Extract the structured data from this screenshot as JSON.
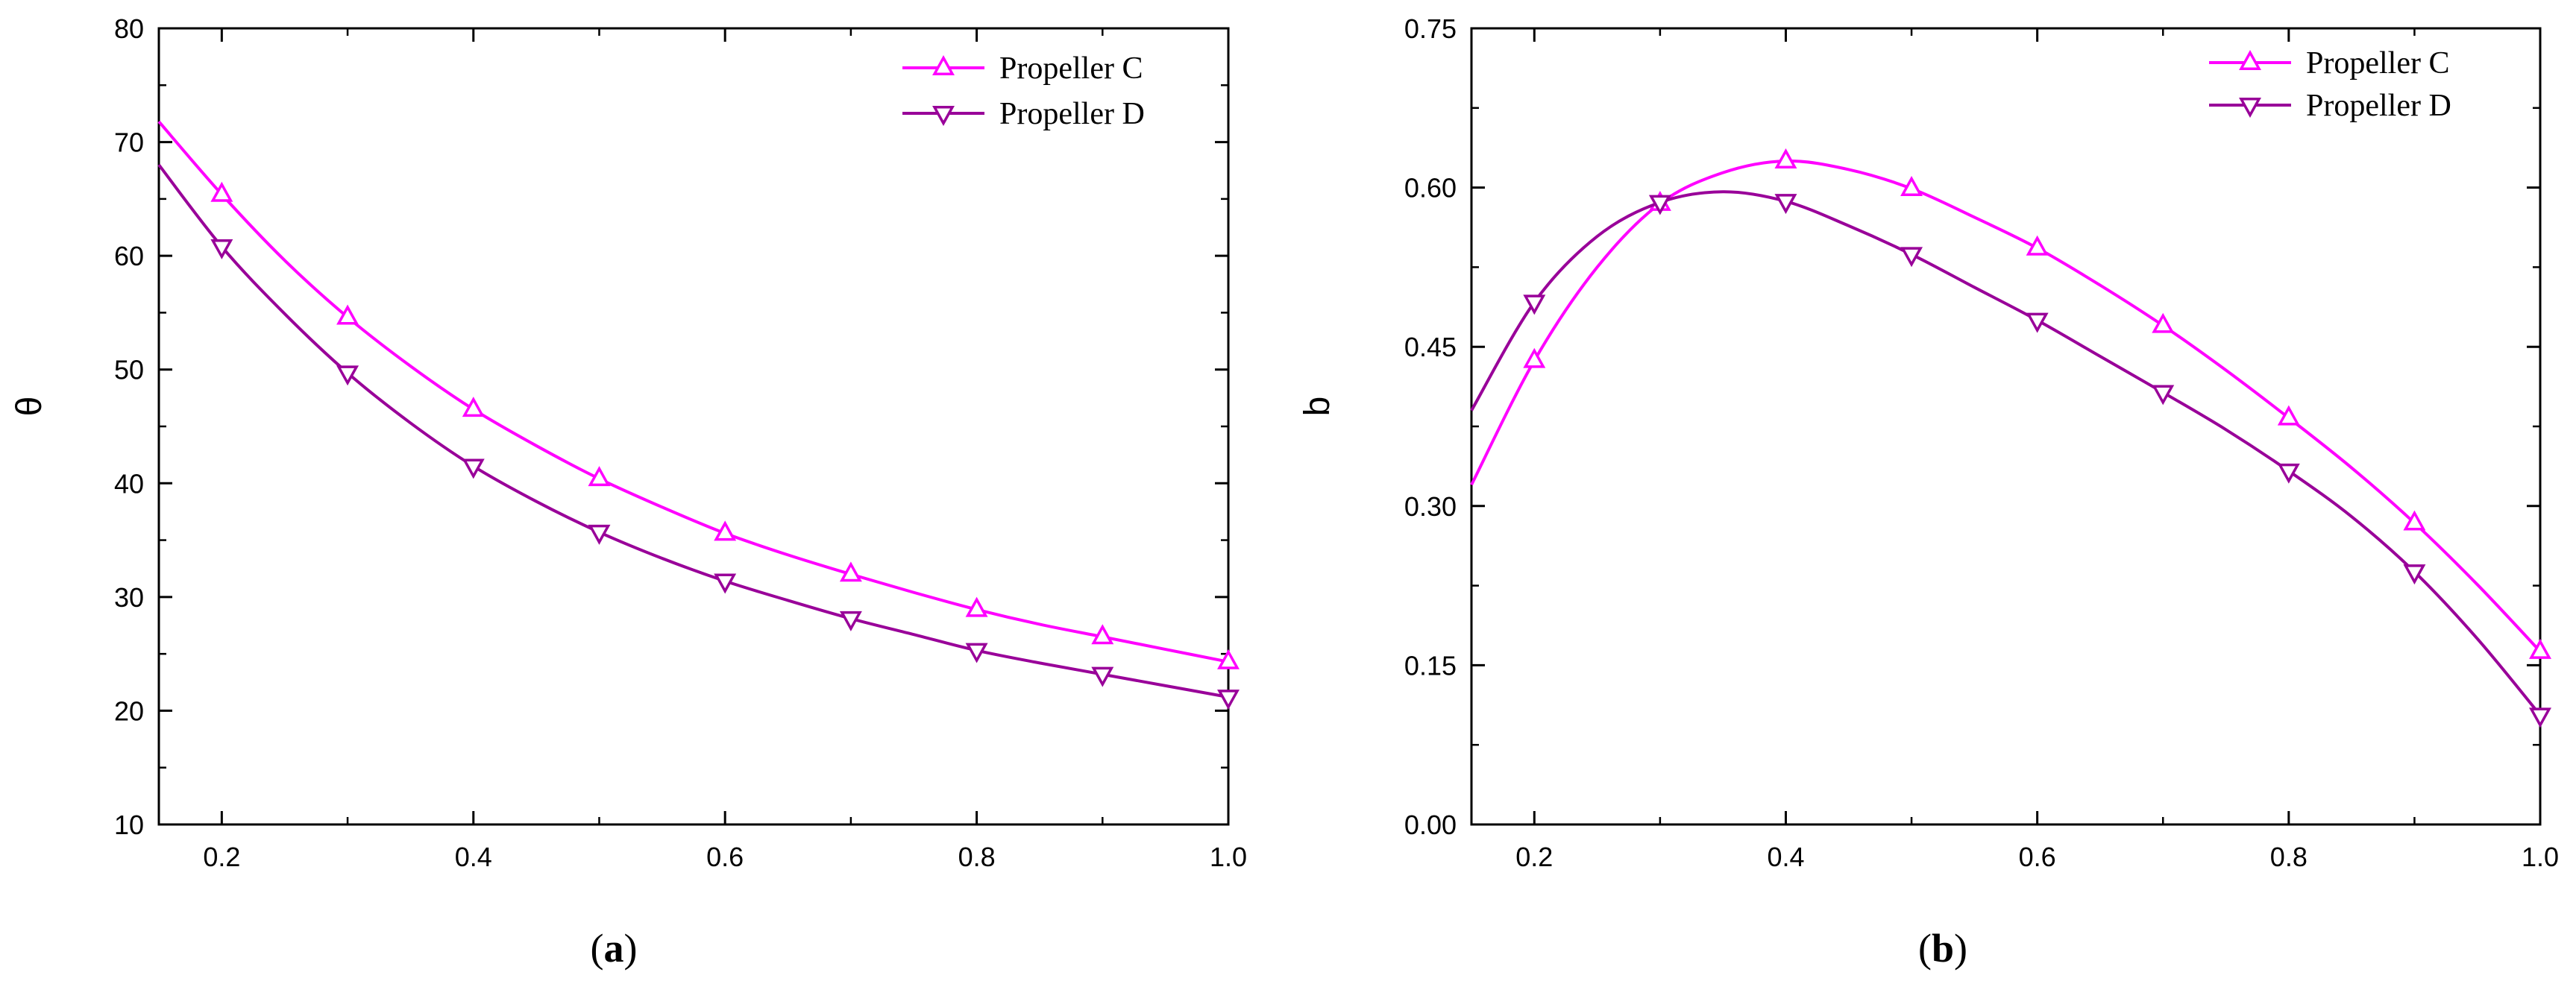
{
  "chart_data": [
    {
      "type": "line",
      "caption": {
        "open": "(",
        "letter": "a",
        "close": ")"
      },
      "xlabel": "",
      "ylabel": "θ",
      "xlim": [
        0.15,
        1.0
      ],
      "ylim": [
        10,
        80
      ],
      "xticks": [
        0.2,
        0.4,
        0.6,
        0.8,
        1.0
      ],
      "xtick_labels": [
        "0.2",
        "0.4",
        "0.6",
        "0.8",
        "1.0"
      ],
      "yticks": [
        10,
        20,
        30,
        40,
        50,
        60,
        70,
        80
      ],
      "ytick_labels": [
        "10",
        "20",
        "30",
        "40",
        "50",
        "60",
        "70",
        "80"
      ],
      "legend": "top-right",
      "series": [
        {
          "name": "Propeller C",
          "color": "#ff00ff",
          "marker": "triangle-up",
          "line_x": [
            0.15,
            0.2,
            0.25,
            0.3,
            0.35,
            0.4,
            0.45,
            0.5,
            0.55,
            0.6,
            0.65,
            0.7,
            0.75,
            0.8,
            0.85,
            0.9,
            0.95,
            1.0
          ],
          "line_y": [
            71.8,
            65.4,
            59.6,
            54.6,
            50.3,
            46.5,
            43.3,
            40.4,
            37.9,
            35.6,
            33.7,
            32.0,
            30.4,
            28.9,
            27.6,
            26.5,
            25.4,
            24.3
          ],
          "marker_x": [
            0.2,
            0.3,
            0.4,
            0.5,
            0.6,
            0.7,
            0.8,
            0.9,
            1.0
          ],
          "marker_y": [
            65.4,
            54.6,
            46.5,
            40.4,
            35.6,
            32.0,
            28.9,
            26.5,
            24.3
          ]
        },
        {
          "name": "Propeller D",
          "color": "#990099",
          "marker": "triangle-down",
          "line_x": [
            0.15,
            0.2,
            0.25,
            0.3,
            0.35,
            0.4,
            0.45,
            0.5,
            0.55,
            0.6,
            0.65,
            0.7,
            0.75,
            0.8,
            0.85,
            0.9,
            0.95,
            1.0
          ],
          "line_y": [
            68.0,
            60.8,
            54.9,
            49.7,
            45.3,
            41.5,
            38.4,
            35.7,
            33.4,
            31.4,
            29.7,
            28.1,
            26.7,
            25.3,
            24.2,
            23.2,
            22.2,
            21.2
          ],
          "marker_x": [
            0.2,
            0.3,
            0.4,
            0.5,
            0.6,
            0.7,
            0.8,
            0.9,
            1.0
          ],
          "marker_y": [
            60.8,
            49.7,
            41.5,
            35.7,
            31.4,
            28.1,
            25.3,
            23.2,
            21.2
          ]
        }
      ]
    },
    {
      "type": "line",
      "caption": {
        "open": "(",
        "letter": "b",
        "close": ")"
      },
      "xlabel": "",
      "ylabel": "b",
      "xlim": [
        0.15,
        1.0
      ],
      "ylim": [
        0.0,
        0.75
      ],
      "xticks": [
        0.2,
        0.4,
        0.6,
        0.8,
        1.0
      ],
      "xtick_labels": [
        "0.2",
        "0.4",
        "0.6",
        "0.8",
        "1.0"
      ],
      "yticks": [
        0.0,
        0.15,
        0.3,
        0.45,
        0.6,
        0.75
      ],
      "ytick_labels": [
        "0.00",
        "0.15",
        "0.30",
        "0.45",
        "0.60",
        "0.75"
      ],
      "legend": "top-right",
      "series": [
        {
          "name": "Propeller C",
          "color": "#ff00ff",
          "marker": "triangle-up",
          "line_x": [
            0.15,
            0.2,
            0.25,
            0.3,
            0.35,
            0.4,
            0.45,
            0.5,
            0.55,
            0.6,
            0.65,
            0.7,
            0.75,
            0.8,
            0.85,
            0.9,
            0.95,
            1.0
          ],
          "line_y": [
            0.32,
            0.437,
            0.525,
            0.585,
            0.614,
            0.625,
            0.617,
            0.599,
            0.572,
            0.543,
            0.508,
            0.47,
            0.428,
            0.383,
            0.336,
            0.284,
            0.226,
            0.163
          ],
          "marker_x": [
            0.2,
            0.3,
            0.4,
            0.5,
            0.6,
            0.7,
            0.8,
            0.9,
            1.0
          ],
          "marker_y": [
            0.437,
            0.585,
            0.625,
            0.599,
            0.543,
            0.47,
            0.383,
            0.284,
            0.163
          ]
        },
        {
          "name": "Propeller D",
          "color": "#990099",
          "marker": "triangle-down",
          "line_x": [
            0.15,
            0.2,
            0.25,
            0.3,
            0.35,
            0.4,
            0.45,
            0.5,
            0.55,
            0.6,
            0.65,
            0.7,
            0.75,
            0.8,
            0.85,
            0.9,
            0.95,
            1.0
          ],
          "line_y": [
            0.39,
            0.492,
            0.554,
            0.586,
            0.596,
            0.587,
            0.564,
            0.537,
            0.506,
            0.475,
            0.441,
            0.407,
            0.372,
            0.333,
            0.29,
            0.238,
            0.175,
            0.103
          ],
          "marker_x": [
            0.2,
            0.3,
            0.4,
            0.5,
            0.6,
            0.7,
            0.8,
            0.9,
            1.0
          ],
          "marker_y": [
            0.492,
            0.586,
            0.587,
            0.537,
            0.475,
            0.407,
            0.333,
            0.238,
            0.103
          ]
        }
      ]
    }
  ]
}
